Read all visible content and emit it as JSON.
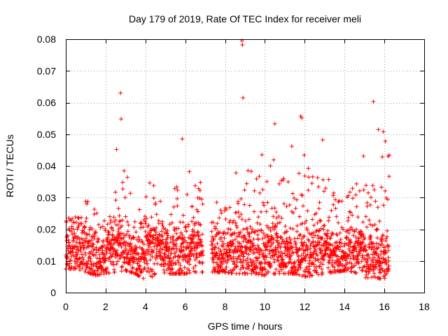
{
  "chart_data": {
    "type": "scatter",
    "title": "Day 179 of 2019, Rate Of TEC Index for receiver meli",
    "xlabel": "GPS time / hours",
    "ylabel": "ROTI / TECUs",
    "xlim": [
      0,
      18
    ],
    "ylim": [
      0,
      0.08
    ],
    "x_ticks": [
      0,
      2,
      4,
      6,
      8,
      10,
      12,
      14,
      16,
      18
    ],
    "x_tick_labels": [
      "0",
      "2",
      "4",
      "6",
      "8",
      "10",
      "12",
      "14",
      "16",
      "18"
    ],
    "y_ticks": [
      0,
      0.01,
      0.02,
      0.03,
      0.04,
      0.05,
      0.06,
      0.07,
      0.08
    ],
    "y_tick_labels": [
      "0",
      "0.01",
      "0.02",
      "0.03",
      "0.04",
      "0.05",
      "0.06",
      "0.07",
      "0.08"
    ],
    "grid": true,
    "marker": "plus",
    "color": "#ff0000",
    "data_gap": [
      6.9,
      7.3
    ],
    "x_range": [
      0,
      16.25
    ],
    "series": [
      {
        "name": "ROTI",
        "outliers": [
          {
            "x": 2.75,
            "y": 0.063
          },
          {
            "x": 2.78,
            "y": 0.0548
          },
          {
            "x": 2.55,
            "y": 0.0452
          },
          {
            "x": 8.85,
            "y": 0.0795
          },
          {
            "x": 8.87,
            "y": 0.0782
          },
          {
            "x": 8.9,
            "y": 0.0615
          },
          {
            "x": 5.85,
            "y": 0.0485
          },
          {
            "x": 10.5,
            "y": 0.0533
          },
          {
            "x": 11.8,
            "y": 0.0557
          },
          {
            "x": 11.85,
            "y": 0.0551
          },
          {
            "x": 15.45,
            "y": 0.0603
          },
          {
            "x": 15.7,
            "y": 0.0515
          },
          {
            "x": 15.95,
            "y": 0.0508
          },
          {
            "x": 16.05,
            "y": 0.0478
          },
          {
            "x": 12.9,
            "y": 0.0482
          },
          {
            "x": 11.35,
            "y": 0.0462
          },
          {
            "x": 9.85,
            "y": 0.0435
          },
          {
            "x": 14.95,
            "y": 0.0431
          },
          {
            "x": 9.15,
            "y": 0.0385
          },
          {
            "x": 8.55,
            "y": 0.0378
          }
        ],
        "envelope": [
          {
            "x": 0.0,
            "min": 0.0075,
            "max": 0.028
          },
          {
            "x": 0.5,
            "min": 0.0075,
            "max": 0.024
          },
          {
            "x": 1.0,
            "min": 0.0065,
            "max": 0.03
          },
          {
            "x": 1.5,
            "min": 0.0055,
            "max": 0.03
          },
          {
            "x": 2.0,
            "min": 0.006,
            "max": 0.028
          },
          {
            "x": 2.5,
            "min": 0.0065,
            "max": 0.033
          },
          {
            "x": 3.0,
            "min": 0.007,
            "max": 0.04
          },
          {
            "x": 3.5,
            "min": 0.006,
            "max": 0.024
          },
          {
            "x": 4.0,
            "min": 0.004,
            "max": 0.036
          },
          {
            "x": 4.5,
            "min": 0.0055,
            "max": 0.034
          },
          {
            "x": 5.0,
            "min": 0.006,
            "max": 0.033
          },
          {
            "x": 5.5,
            "min": 0.006,
            "max": 0.034
          },
          {
            "x": 6.0,
            "min": 0.006,
            "max": 0.04
          },
          {
            "x": 6.5,
            "min": 0.0065,
            "max": 0.037
          },
          {
            "x": 7.5,
            "min": 0.0065,
            "max": 0.032
          },
          {
            "x": 8.0,
            "min": 0.0065,
            "max": 0.028
          },
          {
            "x": 8.5,
            "min": 0.006,
            "max": 0.03
          },
          {
            "x": 9.0,
            "min": 0.006,
            "max": 0.034
          },
          {
            "x": 9.5,
            "min": 0.006,
            "max": 0.041
          },
          {
            "x": 10.0,
            "min": 0.0055,
            "max": 0.036
          },
          {
            "x": 10.5,
            "min": 0.006,
            "max": 0.047
          },
          {
            "x": 11.0,
            "min": 0.006,
            "max": 0.035
          },
          {
            "x": 11.5,
            "min": 0.006,
            "max": 0.037
          },
          {
            "x": 12.0,
            "min": 0.005,
            "max": 0.044
          },
          {
            "x": 12.5,
            "min": 0.0055,
            "max": 0.036
          },
          {
            "x": 13.0,
            "min": 0.006,
            "max": 0.038
          },
          {
            "x": 13.5,
            "min": 0.0065,
            "max": 0.033
          },
          {
            "x": 14.0,
            "min": 0.007,
            "max": 0.031
          },
          {
            "x": 14.5,
            "min": 0.0065,
            "max": 0.035
          },
          {
            "x": 15.0,
            "min": 0.0045,
            "max": 0.036
          },
          {
            "x": 15.5,
            "min": 0.005,
            "max": 0.04
          },
          {
            "x": 16.0,
            "min": 0.004,
            "max": 0.045
          }
        ]
      }
    ]
  }
}
